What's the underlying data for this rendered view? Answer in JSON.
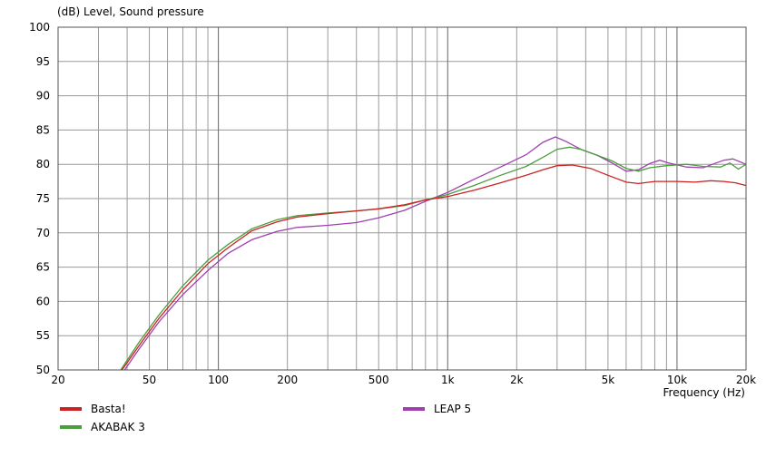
{
  "chart_data": {
    "type": "line",
    "ylabel": "(dB)  Level, Sound pressure",
    "xlabel": "Frequency  (Hz)",
    "x_scale": "log",
    "xlim": [
      20,
      20000
    ],
    "ylim": [
      50,
      100
    ],
    "grid": true,
    "legend_position": "bottom",
    "y_ticks": [
      50,
      55,
      60,
      65,
      70,
      75,
      80,
      85,
      90,
      95,
      100
    ],
    "x_ticks": [
      {
        "value": 20,
        "label": "20"
      },
      {
        "value": 50,
        "label": "50"
      },
      {
        "value": 100,
        "label": "100"
      },
      {
        "value": 200,
        "label": "200"
      },
      {
        "value": 500,
        "label": "500"
      },
      {
        "value": 1000,
        "label": "1k"
      },
      {
        "value": 2000,
        "label": "2k"
      },
      {
        "value": 5000,
        "label": "5k"
      },
      {
        "value": 10000,
        "label": "10k"
      },
      {
        "value": 20000,
        "label": "20k"
      }
    ],
    "series": [
      {
        "name": "LEAP 5",
        "color": "#a040b0",
        "points": [
          [
            39,
            50
          ],
          [
            45,
            53
          ],
          [
            55,
            57
          ],
          [
            70,
            61
          ],
          [
            90,
            64.5
          ],
          [
            110,
            67
          ],
          [
            140,
            69
          ],
          [
            180,
            70.2
          ],
          [
            220,
            70.8
          ],
          [
            300,
            71.1
          ],
          [
            400,
            71.5
          ],
          [
            500,
            72.2
          ],
          [
            650,
            73.3
          ],
          [
            800,
            74.6
          ],
          [
            1000,
            75.9
          ],
          [
            1300,
            77.8
          ],
          [
            1700,
            79.6
          ],
          [
            2200,
            81.4
          ],
          [
            2600,
            83.2
          ],
          [
            2950,
            84.0
          ],
          [
            3300,
            83.3
          ],
          [
            3800,
            82.2
          ],
          [
            4500,
            81.3
          ],
          [
            5200,
            80.2
          ],
          [
            6000,
            79.0
          ],
          [
            6800,
            79.2
          ],
          [
            7600,
            80.1
          ],
          [
            8400,
            80.6
          ],
          [
            9200,
            80.2
          ],
          [
            11000,
            79.6
          ],
          [
            13000,
            79.5
          ],
          [
            16000,
            80.6
          ],
          [
            17500,
            80.8
          ],
          [
            20000,
            80.0
          ]
        ]
      },
      {
        "name": "AKABAK 3",
        "color": "#4a9e3c",
        "points": [
          [
            37.5,
            50
          ],
          [
            45,
            54
          ],
          [
            55,
            58
          ],
          [
            70,
            62.3
          ],
          [
            90,
            66
          ],
          [
            110,
            68.3
          ],
          [
            140,
            70.6
          ],
          [
            180,
            71.9
          ],
          [
            220,
            72.5
          ],
          [
            300,
            72.9
          ],
          [
            400,
            73.2
          ],
          [
            500,
            73.5
          ],
          [
            650,
            74.0
          ],
          [
            800,
            74.8
          ],
          [
            1000,
            75.6
          ],
          [
            1300,
            76.9
          ],
          [
            1700,
            78.4
          ],
          [
            2200,
            79.7
          ],
          [
            2600,
            81.0
          ],
          [
            3000,
            82.2
          ],
          [
            3400,
            82.5
          ],
          [
            3800,
            82.2
          ],
          [
            4500,
            81.3
          ],
          [
            5200,
            80.5
          ],
          [
            6000,
            79.4
          ],
          [
            6800,
            79.0
          ],
          [
            7600,
            79.5
          ],
          [
            9000,
            79.8
          ],
          [
            11000,
            80.0
          ],
          [
            13000,
            79.7
          ],
          [
            15500,
            79.6
          ],
          [
            17000,
            80.2
          ],
          [
            18500,
            79.3
          ],
          [
            20000,
            80.0
          ]
        ]
      },
      {
        "name": "Basta!",
        "color": "#cc2222",
        "points": [
          [
            38,
            50
          ],
          [
            45,
            53.5
          ],
          [
            55,
            57.5
          ],
          [
            70,
            61.7
          ],
          [
            90,
            65.5
          ],
          [
            110,
            67.8
          ],
          [
            140,
            70.3
          ],
          [
            180,
            71.6
          ],
          [
            220,
            72.3
          ],
          [
            300,
            72.8
          ],
          [
            400,
            73.2
          ],
          [
            500,
            73.5
          ],
          [
            650,
            74.1
          ],
          [
            800,
            74.8
          ],
          [
            1000,
            75.3
          ],
          [
            1300,
            76.2
          ],
          [
            1700,
            77.3
          ],
          [
            2200,
            78.4
          ],
          [
            2600,
            79.2
          ],
          [
            3000,
            79.8
          ],
          [
            3500,
            79.9
          ],
          [
            4200,
            79.4
          ],
          [
            5000,
            78.4
          ],
          [
            6000,
            77.4
          ],
          [
            6800,
            77.2
          ],
          [
            8000,
            77.5
          ],
          [
            10000,
            77.5
          ],
          [
            12000,
            77.4
          ],
          [
            14000,
            77.6
          ],
          [
            16000,
            77.5
          ],
          [
            18000,
            77.3
          ],
          [
            20000,
            76.9
          ]
        ]
      }
    ],
    "legend": [
      {
        "name": "Basta!",
        "color": "#cc2222"
      },
      {
        "name": "AKABAK 3",
        "color": "#4a9e3c"
      },
      {
        "name": "LEAP 5",
        "color": "#a040b0"
      }
    ]
  }
}
